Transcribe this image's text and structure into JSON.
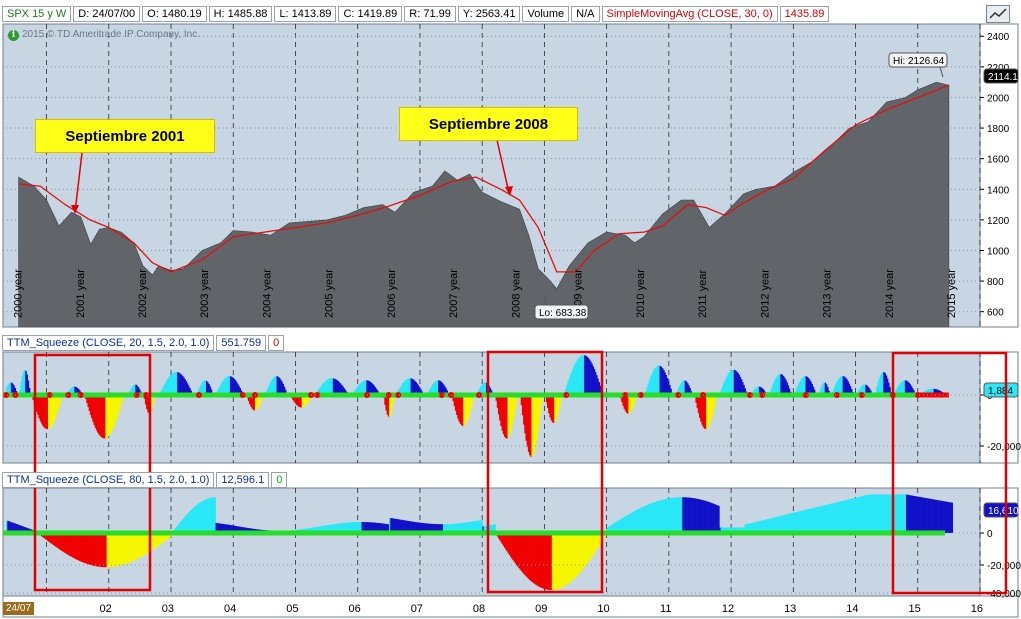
{
  "header_main": {
    "symbol": "SPX 15 y W",
    "date": "D: 24/07/00",
    "open": "O: 1480.19",
    "high": "H: 1485.88",
    "low": "L: 1413.89",
    "close": "C: 1419.89",
    "range": "R: 71.99",
    "y": "Y: 2563.41",
    "volume_label": "Volume",
    "volume_value": "N/A",
    "sma_label": "SimpleMovingAvg (CLOSE, 30, 0)",
    "sma_value": "1435.89"
  },
  "header_sq1": {
    "label": "TTM_Squeeze (CLOSE, 20, 1.5, 2.0, 1.0)",
    "value": "551.759",
    "signal": "0"
  },
  "header_sq2": {
    "label": "TTM_Squeeze (CLOSE, 80, 1.5, 2.0, 1.0)",
    "value": "12,596.1",
    "signal": "0"
  },
  "copyright": "2015 © TD Ameritrade IP Company, Inc.",
  "date_tag": "24/07",
  "callouts": {
    "a": "Septiembre 2001",
    "b": "Septiembre 2008"
  },
  "colors": {
    "price_fill": "#616569",
    "sma": "#e01010",
    "background": "#c8d6e3",
    "histo_cyan": "#29e7f7",
    "histo_blue": "#1111c8",
    "histo_red": "#f00000",
    "histo_yellow": "#f6f600",
    "squeeze_on": "#f00000",
    "squeeze_off": "#22e022",
    "highlight_box": "#e00000"
  },
  "chart_data": [
    {
      "type": "area",
      "title": "",
      "series": [
        {
          "name": "SPX 15 y W",
          "x": [
            2000.55,
            2000.8,
            2001.0,
            2001.2,
            2001.4,
            2001.55,
            2001.71,
            2001.85,
            2002.0,
            2002.2,
            2002.4,
            2002.55,
            2002.7,
            2002.8,
            2003.0,
            2003.2,
            2003.5,
            2003.8,
            2004.0,
            2004.3,
            2004.6,
            2004.9,
            2005.2,
            2005.5,
            2005.8,
            2006.1,
            2006.4,
            2006.6,
            2006.9,
            2007.2,
            2007.4,
            2007.6,
            2007.8,
            2008.0,
            2008.3,
            2008.6,
            2008.75,
            2008.9,
            2009.05,
            2009.2,
            2009.4,
            2009.7,
            2010.0,
            2010.3,
            2010.45,
            2010.6,
            2010.9,
            2011.2,
            2011.4,
            2011.65,
            2011.9,
            2012.2,
            2012.4,
            2012.7,
            2013.0,
            2013.3,
            2013.6,
            2013.9,
            2014.2,
            2014.5,
            2014.8,
            2015.0,
            2015.3,
            2015.5
          ],
          "y": [
            1480,
            1420,
            1330,
            1160,
            1250,
            1220,
            1040,
            1140,
            1150,
            1120,
            1050,
            900,
            840,
            900,
            870,
            880,
            1000,
            1050,
            1130,
            1120,
            1100,
            1180,
            1190,
            1200,
            1230,
            1280,
            1300,
            1250,
            1380,
            1420,
            1520,
            1460,
            1500,
            1380,
            1320,
            1270,
            1100,
            880,
            820,
            750,
            900,
            1050,
            1120,
            1100,
            1050,
            1090,
            1240,
            1330,
            1330,
            1150,
            1240,
            1370,
            1400,
            1420,
            1510,
            1580,
            1680,
            1800,
            1840,
            1970,
            2000,
            2050,
            2100,
            2080
          ]
        },
        {
          "name": "SimpleMovingAvg (CLOSE, 30, 0)",
          "x": [
            2000.55,
            2000.9,
            2001.3,
            2001.7,
            2002.0,
            2002.4,
            2002.7,
            2003.0,
            2003.5,
            2004.0,
            2004.5,
            2005.0,
            2005.5,
            2006.0,
            2006.5,
            2007.0,
            2007.5,
            2007.9,
            2008.3,
            2008.6,
            2008.9,
            2009.2,
            2009.5,
            2009.8,
            2010.2,
            2010.6,
            2010.9,
            2011.3,
            2011.6,
            2011.9,
            2012.2,
            2012.6,
            2013.0,
            2013.5,
            2014.0,
            2014.5,
            2015.0,
            2015.5
          ],
          "y": [
            1435,
            1420,
            1300,
            1200,
            1150,
            1050,
            920,
            860,
            940,
            1090,
            1120,
            1150,
            1180,
            1230,
            1290,
            1360,
            1450,
            1480,
            1400,
            1330,
            1150,
            860,
            860,
            1000,
            1110,
            1120,
            1160,
            1300,
            1280,
            1230,
            1310,
            1400,
            1470,
            1650,
            1820,
            1920,
            2000,
            2080
          ]
        }
      ],
      "ylim": [
        500,
        2480
      ],
      "yticks": [
        600,
        800,
        1000,
        1200,
        1400,
        1600,
        1800,
        2000,
        2200,
        2400
      ],
      "xlim": [
        2000.3,
        2016.0
      ],
      "x_year_labels": [
        "2000 year",
        "2001 year",
        "2002 year",
        "2003 year",
        "2004 year",
        "2005 year",
        "2006 year",
        "2007 year",
        "2008 year",
        "2009 year",
        "2010 year",
        "2011 year",
        "2012 year",
        "2013 year",
        "2014 year",
        "2015 year"
      ],
      "annotations": {
        "hi": "Hi: 2126.64",
        "lo": "Lo: 683.38",
        "last_price": "2114.1"
      },
      "grid": true
    },
    {
      "type": "bar",
      "title": "TTM_Squeeze (CLOSE, 20, 1.5, 2.0, 1.0)",
      "yticks_labels": [
        "0",
        "-20,000"
      ],
      "last_value_label": "1,884",
      "grid": true
    },
    {
      "type": "bar",
      "title": "TTM_Squeeze (CLOSE, 80, 1.5, 2.0, 1.0)",
      "yticks_labels": [
        "0",
        "-20,000",
        "-40,000"
      ],
      "last_value_label": "16,610",
      "x_ticks": [
        "02",
        "03",
        "04",
        "05",
        "06",
        "07",
        "08",
        "09",
        "10",
        "11",
        "12",
        "13",
        "14",
        "15",
        "16"
      ],
      "grid": true
    }
  ]
}
